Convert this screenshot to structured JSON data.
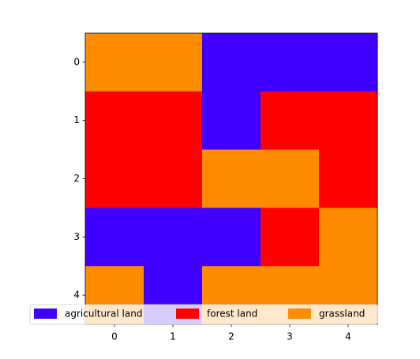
{
  "chart_data": {
    "type": "heatmap",
    "classes": [
      {
        "name": "agricultural land",
        "color": "#3f00ff"
      },
      {
        "name": "forest land",
        "color": "#ff0000"
      },
      {
        "name": "grassland",
        "color": "#ff8c00"
      }
    ],
    "values": [
      [
        2,
        2,
        0,
        0,
        0
      ],
      [
        1,
        1,
        0,
        1,
        1
      ],
      [
        1,
        1,
        2,
        2,
        1
      ],
      [
        0,
        0,
        0,
        1,
        2
      ],
      [
        2,
        0,
        2,
        2,
        2
      ]
    ],
    "xlim": [
      -0.5,
      4.5
    ],
    "ylim": [
      4.5,
      -0.5
    ],
    "xticks": [
      0,
      1,
      2,
      3,
      4
    ],
    "yticks": [
      0,
      1,
      2,
      3,
      4
    ],
    "legend_loc": "lower center"
  }
}
